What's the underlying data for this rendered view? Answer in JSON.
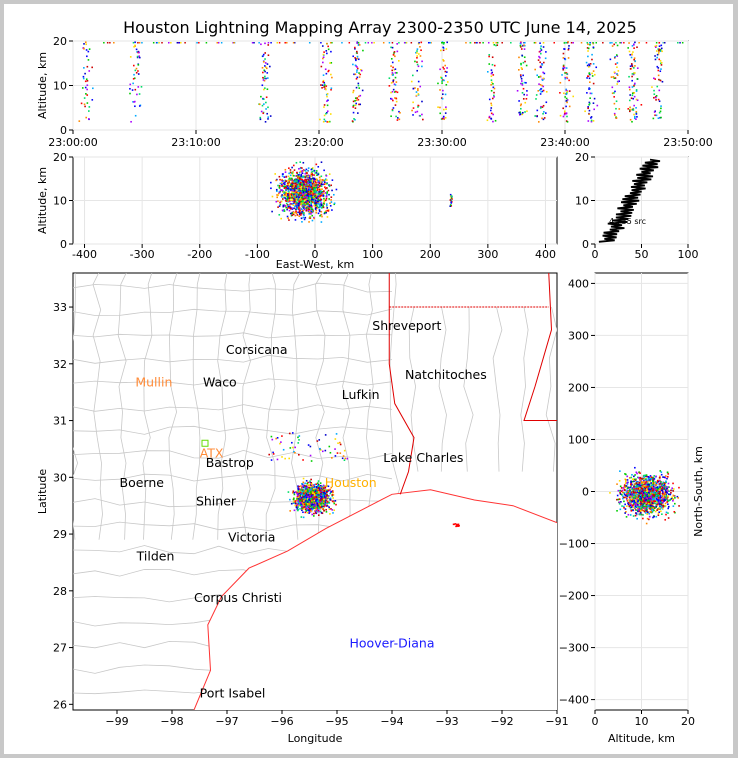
{
  "title": "Houston Lightning Mapping Array 2300-2350 UTC June 14, 2025",
  "colors": {
    "cities": "#000000",
    "stations_orange": "#ff8c3a",
    "storm_blue": "#1a1aff",
    "coast": "#ff3333",
    "state_border": "#e00000",
    "county": "#c8c8c8"
  },
  "chart_data": [
    {
      "name": "altitude-vs-time",
      "type": "scatter",
      "ylabel": "Altitude, km",
      "ylim": [
        0,
        20
      ],
      "xlim": [
        "23:00:00",
        "23:50:00"
      ],
      "xticks": [
        "23:00:00",
        "23:10:00",
        "23:20:00",
        "23:30:00",
        "23:40:00",
        "23:50:00"
      ],
      "yticks": [
        "0",
        "10",
        "20"
      ],
      "burst_minutes": [
        1,
        5,
        15.5,
        20.5,
        23,
        26,
        28,
        30,
        34,
        36.5,
        38,
        40,
        42,
        44,
        45.5,
        47.5
      ]
    },
    {
      "name": "altitude-vs-east-west",
      "type": "scatter",
      "xlabel": "East-West, km",
      "ylabel": "Altitude, km",
      "xlim": [
        -420,
        420
      ],
      "ylim": [
        0,
        20
      ],
      "xticks": [
        "-400",
        "-300",
        "-200",
        "-100",
        "0",
        "100",
        "200",
        "300",
        "400"
      ],
      "yticks": [
        "0",
        "10",
        "20"
      ],
      "cluster_center_km": [
        -20,
        12
      ],
      "outlier_cluster_km": [
        235,
        10
      ]
    },
    {
      "name": "altitude-histogram",
      "type": "line",
      "xlim": [
        0,
        100
      ],
      "ylim": [
        0,
        20
      ],
      "xticks": [
        "0",
        "50",
        "100"
      ],
      "yticks": [
        "0",
        "10",
        "20"
      ],
      "annotation": "4,735 src"
    },
    {
      "name": "plan-view-map",
      "type": "scatter",
      "xlabel": "Longitude",
      "ylabel": "Latitude",
      "xlim": [
        -99.8,
        -91
      ],
      "ylim": [
        25.9,
        33.6
      ],
      "xticks": [
        "−99",
        "−98",
        "−97",
        "−96",
        "−95",
        "−94",
        "−93",
        "−92",
        "−91"
      ],
      "yticks": [
        "26",
        "27",
        "28",
        "29",
        "30",
        "31",
        "32",
        "33"
      ],
      "cluster_center_lonlat": [
        -95.45,
        29.65
      ]
    },
    {
      "name": "north-south-vs-altitude",
      "type": "scatter",
      "xlabel": "Altitude, km",
      "ylabel": "North-South, km",
      "xlim": [
        0,
        20
      ],
      "ylim": [
        -420,
        420
      ],
      "xticks": [
        "0",
        "10",
        "20"
      ],
      "yticks": [
        "400",
        "300",
        "200",
        "100",
        "0",
        "−100",
        "−200",
        "−300",
        "−400"
      ]
    }
  ],
  "map_labels": [
    {
      "text": "Shreveport",
      "lon": -93.73,
      "lat": 32.6,
      "color": "#000000"
    },
    {
      "text": "Corsicana",
      "lon": -96.46,
      "lat": 32.17,
      "color": "#000000"
    },
    {
      "text": "Natchitoches",
      "lon": -93.02,
      "lat": 31.73,
      "color": "#000000"
    },
    {
      "text": "Mullin",
      "lon": -98.33,
      "lat": 31.6,
      "color": "#ff8c3a"
    },
    {
      "text": "Waco",
      "lon": -97.13,
      "lat": 31.6,
      "color": "#000000"
    },
    {
      "text": "Lufkin",
      "lon": -94.57,
      "lat": 31.38,
      "color": "#000000"
    },
    {
      "text": "ATX",
      "lon": -97.28,
      "lat": 30.35,
      "color": "#ff8c3a"
    },
    {
      "text": "Bastrop",
      "lon": -96.95,
      "lat": 30.18,
      "color": "#000000"
    },
    {
      "text": "Lake Charles",
      "lon": -93.43,
      "lat": 30.27,
      "color": "#000000"
    },
    {
      "text": "Boerne",
      "lon": -98.55,
      "lat": 29.83,
      "color": "#000000"
    },
    {
      "text": "Houston",
      "lon": -94.75,
      "lat": 29.83,
      "color": "#ffb000"
    },
    {
      "text": "Shiner",
      "lon": -97.2,
      "lat": 29.5,
      "color": "#000000"
    },
    {
      "text": "Victoria",
      "lon": -96.55,
      "lat": 28.87,
      "color": "#000000"
    },
    {
      "text": "Tilden",
      "lon": -98.3,
      "lat": 28.53,
      "color": "#000000"
    },
    {
      "text": "Corpus Christi",
      "lon": -96.8,
      "lat": 27.8,
      "color": "#000000"
    },
    {
      "text": "Hoover-Diana",
      "lon": -94.0,
      "lat": 27.0,
      "color": "#1a1aff"
    },
    {
      "text": "Port Isabel",
      "lon": -96.9,
      "lat": 26.12,
      "color": "#000000"
    }
  ]
}
